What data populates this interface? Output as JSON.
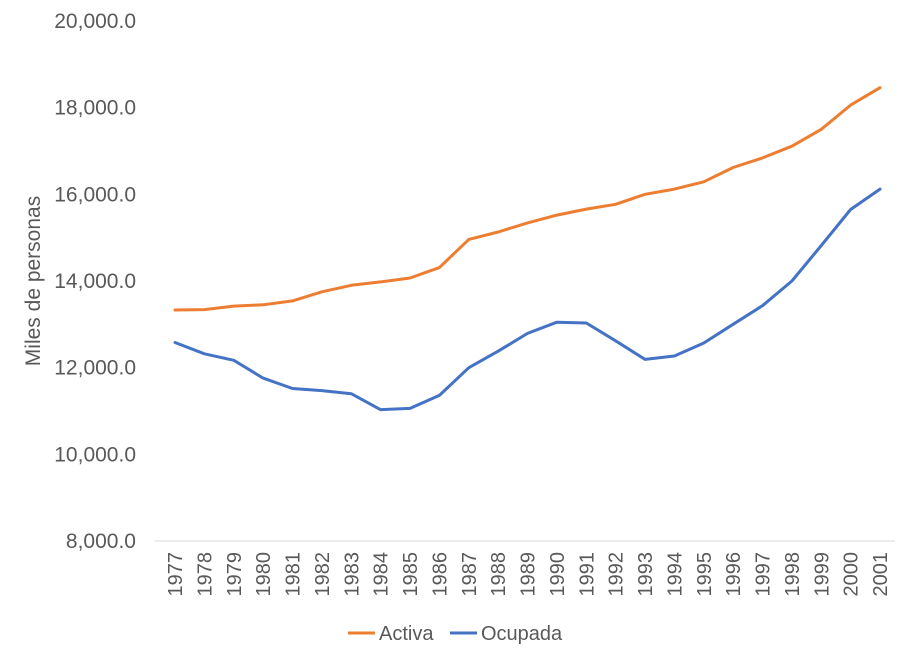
{
  "chart_data": {
    "type": "line",
    "title": "",
    "xlabel": "",
    "ylabel": "Miles de personas",
    "ylim": [
      8000,
      20000
    ],
    "ytick_labels": [
      "8,000.0",
      "10,000.0",
      "12,000.0",
      "14,000.0",
      "16,000.0",
      "18,000.0",
      "20,000.0"
    ],
    "ytick_values": [
      8000,
      10000,
      12000,
      14000,
      16000,
      18000,
      20000
    ],
    "grid": false,
    "legend_position": "bottom",
    "categories": [
      "1977",
      "1978",
      "1979",
      "1980",
      "1981",
      "1982",
      "1983",
      "1984",
      "1985",
      "1986",
      "1987",
      "1988",
      "1989",
      "1990",
      "1991",
      "1992",
      "1993",
      "1994",
      "1995",
      "1996",
      "1997",
      "1998",
      "1999",
      "2000",
      "2001"
    ],
    "series": [
      {
        "name": "Activa",
        "color": "#ED7D31",
        "values": [
          13330,
          13340,
          13420,
          13450,
          13540,
          13750,
          13900,
          13980,
          14070,
          14310,
          14960,
          15130,
          15340,
          15520,
          15660,
          15770,
          16000,
          16120,
          16290,
          16620,
          16840,
          17110,
          17500,
          18060,
          18460
        ]
      },
      {
        "name": "Ocupada",
        "color": "#4472C4",
        "values": [
          12580,
          12320,
          12170,
          11760,
          11520,
          11470,
          11400,
          11030,
          11060,
          11360,
          12000,
          12380,
          12790,
          13050,
          13030,
          12620,
          12190,
          12270,
          12570,
          13000,
          13430,
          14000,
          14820,
          15650,
          16120
        ]
      }
    ]
  }
}
